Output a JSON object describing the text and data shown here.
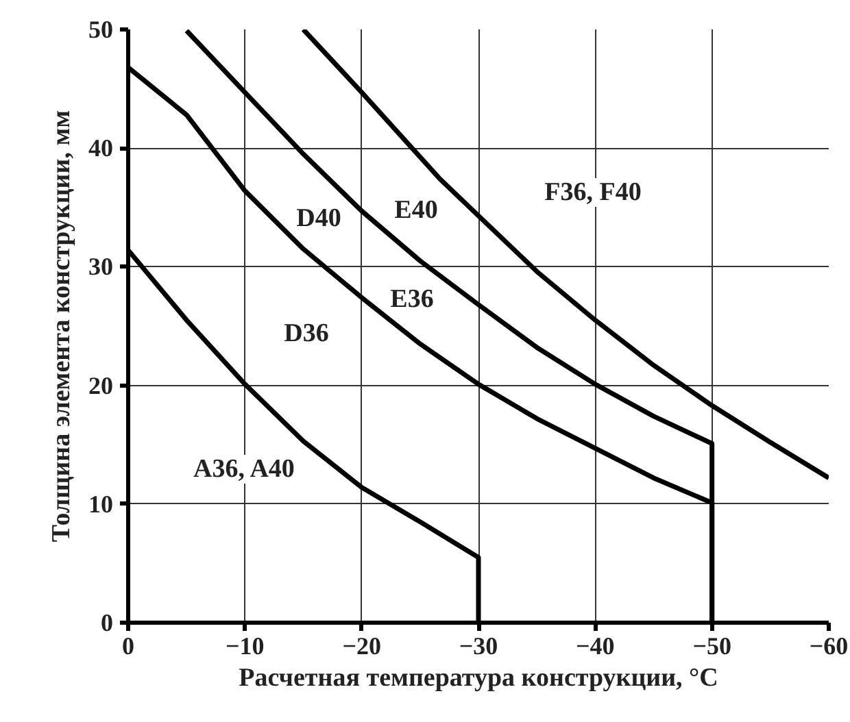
{
  "chart_data": {
    "type": "line",
    "xlabel": "Расчетная температура конструкции, °C",
    "ylabel": "Толщина элемента конструкции, мм",
    "xlim": [
      0,
      -60
    ],
    "xticks": [
      0,
      -10,
      -20,
      -30,
      -40,
      -50,
      -60
    ],
    "ylim": [
      0,
      50
    ],
    "yticks": [
      0,
      10,
      20,
      30,
      40,
      50
    ],
    "grid": true,
    "line_style": "solid",
    "marker": "none",
    "series": [
      {
        "color": "#000000",
        "x": [
          0,
          -5,
          -10,
          -15,
          -20,
          -25,
          -30,
          -30
        ],
        "values": [
          31.4,
          25.5,
          20.1,
          15.3,
          11.4,
          8.5,
          5.5,
          0
        ]
      },
      {
        "color": "#000000",
        "x": [
          0,
          -5,
          -10,
          -15,
          -20,
          -25,
          -30,
          -35,
          -40,
          -45,
          -50,
          -50
        ],
        "values": [
          46.8,
          42.8,
          36.4,
          31.5,
          27.4,
          23.5,
          20.1,
          17.2,
          14.7,
          12.2,
          10.1,
          0
        ]
      },
      {
        "color": "#000000",
        "x": [
          -5,
          -10,
          -15,
          -20,
          -25,
          -30,
          -35,
          -40,
          -45,
          -50,
          -50
        ],
        "values": [
          49.9,
          44.7,
          39.5,
          34.7,
          30.5,
          26.8,
          23.2,
          20.1,
          17.4,
          15.1,
          0
        ]
      },
      {
        "color": "#000000",
        "x": [
          -15,
          -20,
          -26.7,
          -30,
          -35,
          -40,
          -45,
          -50,
          -55,
          -60
        ],
        "values": [
          50,
          44.7,
          37.4,
          34.3,
          29.6,
          25.5,
          21.7,
          18.3,
          15.2,
          12.2
        ]
      }
    ],
    "annotations": [
      "A36, A40",
      "D36",
      "D40",
      "E36",
      "E40",
      "F36, F40"
    ]
  }
}
